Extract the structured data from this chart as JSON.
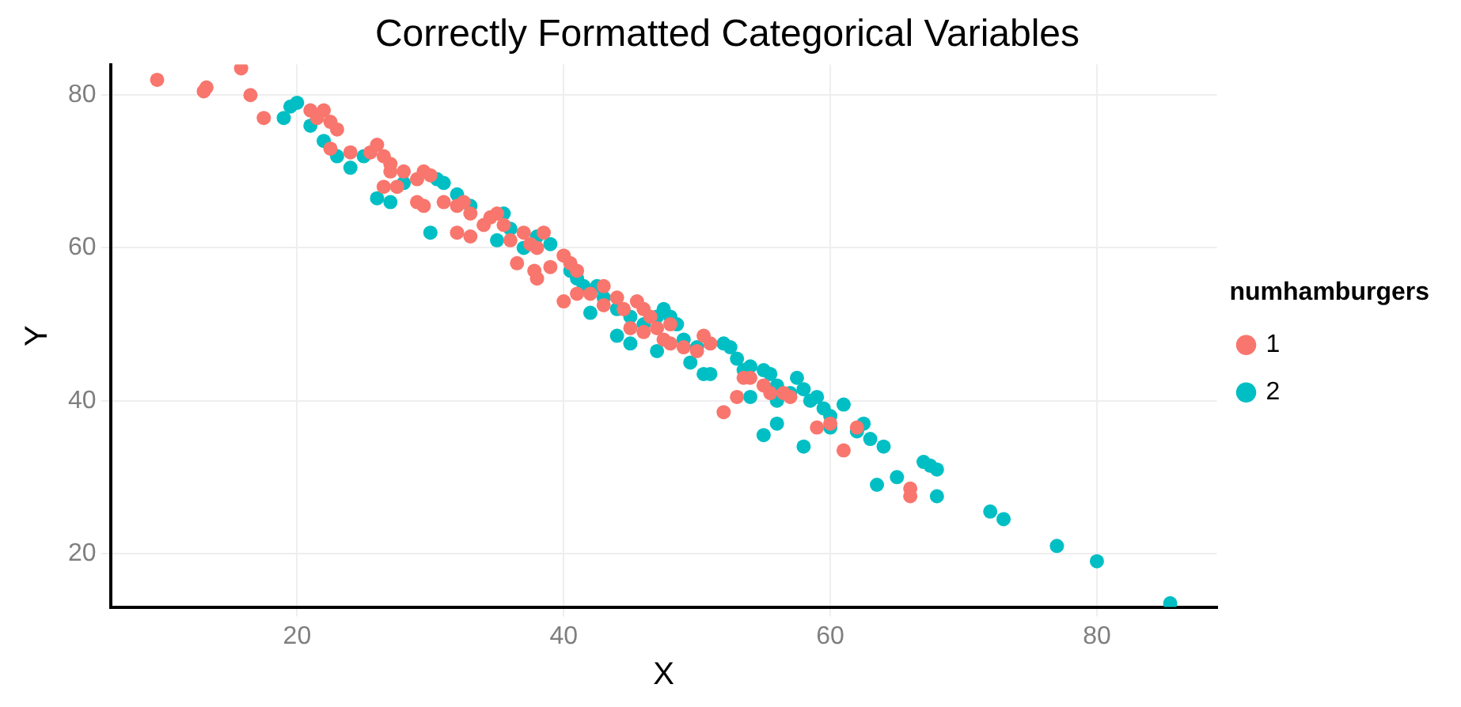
{
  "chart_data": {
    "type": "scatter",
    "title": "Correctly Formatted Categorical Variables",
    "xlabel": "X",
    "ylabel": "Y",
    "legend_title": "numhamburgers",
    "legend": "right",
    "grid": true,
    "marker": "circle",
    "xlim": [
      6,
      89
    ],
    "ylim": [
      13,
      84
    ],
    "xticks": [
      20,
      40,
      60,
      80
    ],
    "yticks": [
      20,
      40,
      60,
      80
    ],
    "series": [
      {
        "name": "1",
        "color": "#f8766d",
        "x": [
          9.5,
          13,
          13.2,
          15.8,
          16.5,
          17.5,
          21,
          21.5,
          22,
          22.5,
          23,
          22.5,
          24,
          25.5,
          26,
          26.5,
          27,
          27,
          28,
          29,
          29.5,
          30,
          26.5,
          27.5,
          29,
          29.5,
          31,
          32,
          32.5,
          33,
          32,
          33,
          34,
          34.5,
          35,
          35.5,
          36,
          37,
          37.5,
          38,
          37.8,
          38,
          39,
          40,
          40.5,
          41,
          40,
          41,
          42,
          43,
          44,
          44.5,
          45.5,
          46,
          46.5,
          45,
          46,
          47,
          47.5,
          48,
          49,
          50,
          50.5,
          51,
          52,
          53,
          53.5,
          54,
          55,
          55.5,
          56.5,
          57,
          59,
          60,
          61,
          62,
          66,
          66,
          48,
          43,
          36.5,
          38.5
        ],
        "values": [
          82,
          80.5,
          81,
          83.5,
          80,
          77,
          78,
          77,
          78,
          76.5,
          75.5,
          73,
          72.5,
          72.5,
          73.5,
          72,
          71,
          70,
          70,
          69,
          70,
          69.5,
          68,
          68,
          66,
          65.5,
          66,
          65.5,
          66,
          64.5,
          62,
          61.5,
          63,
          64,
          64.5,
          63,
          61,
          62,
          60.5,
          60,
          57,
          56,
          57.5,
          59,
          58,
          57,
          53,
          54,
          54,
          55,
          53.5,
          52,
          53,
          52,
          51,
          49.5,
          49,
          49.5,
          48,
          47.5,
          47,
          46.5,
          48.5,
          47.5,
          38.5,
          40.5,
          43,
          43,
          42,
          41,
          41,
          40.5,
          36.5,
          37,
          33.5,
          36.5,
          27.5,
          28.5,
          50,
          52.5,
          58,
          62
        ]
      },
      {
        "name": "2",
        "color": "#00bfc4",
        "x": [
          19,
          20,
          19.5,
          21,
          22,
          23,
          24,
          25,
          26,
          27,
          28,
          30,
          30.5,
          31,
          32,
          33,
          34,
          35,
          35.5,
          36,
          37,
          38,
          39,
          40,
          40.5,
          41,
          41.5,
          42.5,
          43,
          44,
          45,
          46,
          47,
          47.5,
          48,
          48.5,
          49,
          50,
          49.5,
          50.5,
          51,
          52,
          52.5,
          53,
          53.5,
          54,
          55,
          55.5,
          56,
          56,
          57,
          57.5,
          58,
          58.5,
          59,
          59.5,
          60,
          61,
          58,
          55,
          56,
          62,
          62.5,
          63,
          63.5,
          64,
          65,
          67,
          67.5,
          68,
          68,
          72,
          73,
          77,
          80,
          85.5,
          44,
          45,
          42,
          47,
          54,
          60
        ],
        "values": [
          77,
          79,
          78.5,
          76,
          74,
          72,
          70.5,
          72,
          66.5,
          66,
          68.5,
          62,
          69,
          68.5,
          67,
          65.5,
          null,
          61,
          64.5,
          62.5,
          60,
          61.5,
          60.5,
          null,
          57,
          56,
          55,
          55,
          53.5,
          52,
          51,
          50,
          51,
          52,
          51,
          50,
          48,
          47,
          45,
          43.5,
          43.5,
          47.5,
          47,
          45.5,
          44,
          44.5,
          44,
          43.5,
          40,
          42,
          41,
          43,
          41.5,
          40,
          40.5,
          39,
          38,
          39.5,
          34,
          35.5,
          37,
          36,
          37,
          35,
          29,
          34,
          30,
          32,
          31.5,
          31,
          27.5,
          25.5,
          24.5,
          21,
          19,
          13.5,
          48.5,
          47.5,
          51.5,
          46.5,
          40.5,
          36.5
        ]
      }
    ]
  }
}
